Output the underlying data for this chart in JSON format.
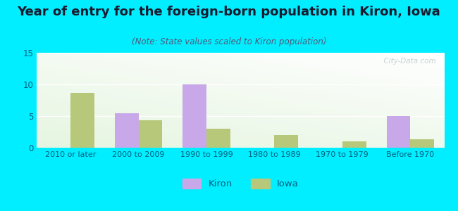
{
  "categories": [
    "2010 or later",
    "2000 to 2009",
    "1990 to 1999",
    "1980 to 1989",
    "1970 to 1979",
    "Before 1970"
  ],
  "kiron_values": [
    0,
    5.5,
    10,
    0,
    0,
    5
  ],
  "iowa_values": [
    8.7,
    4.3,
    3.0,
    2.0,
    1.0,
    1.3
  ],
  "kiron_color": "#c8a8e8",
  "iowa_color": "#b8c87a",
  "title": "Year of entry for the foreign-born population in Kiron, Iowa",
  "subtitle": "(Note: State values scaled to Kiron population)",
  "title_fontsize": 13,
  "subtitle_fontsize": 8.5,
  "ylim": [
    0,
    15
  ],
  "yticks": [
    0,
    5,
    10,
    15
  ],
  "bar_width": 0.35,
  "background_outer": "#00eeff",
  "watermark": "  City-Data.com",
  "legend_labels": [
    "Kiron",
    "Iowa"
  ],
  "tick_color": "#006080",
  "title_color": "#1a1a2e",
  "subtitle_color": "#555577"
}
